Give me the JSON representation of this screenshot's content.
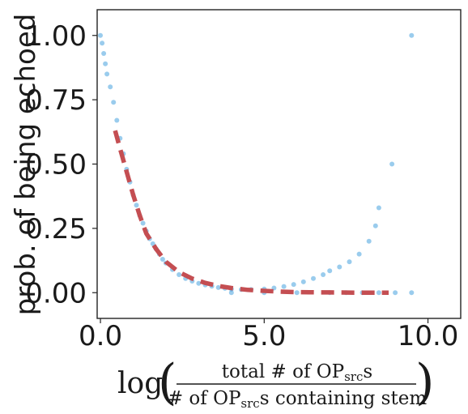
{
  "chart_data": {
    "type": "scatter",
    "title": "",
    "ylabel": "prob. of being echoed",
    "xlabel": {
      "prefix": "log",
      "numerator": [
        "total # of OP",
        "src",
        "s"
      ],
      "denominator": [
        "# of OP",
        "src",
        "s containing stem"
      ]
    },
    "xlim": [
      -0.1,
      11.0
    ],
    "ylim": [
      -0.1,
      1.1
    ],
    "xticks": [
      0.0,
      5.0,
      10.0
    ],
    "xtick_labels": [
      "0.0",
      "5.0",
      "10.0"
    ],
    "yticks": [
      0.0,
      0.25,
      0.5,
      0.75,
      1.0
    ],
    "ytick_labels": [
      "0.00",
      "0.25",
      "0.50",
      "0.75",
      "1.00"
    ],
    "grid": false,
    "series": [
      {
        "kind": "scatter",
        "color": "#1f8dd6",
        "points": [
          [
            0.0,
            1.0
          ],
          [
            0.05,
            0.97
          ],
          [
            0.1,
            0.93
          ],
          [
            0.15,
            0.89
          ],
          [
            0.2,
            0.85
          ],
          [
            0.3,
            0.8
          ],
          [
            0.4,
            0.74
          ],
          [
            0.5,
            0.67
          ],
          [
            0.6,
            0.6
          ],
          [
            0.7,
            0.54
          ],
          [
            0.8,
            0.48
          ],
          [
            0.9,
            0.43
          ],
          [
            1.0,
            0.38
          ],
          [
            1.1,
            0.34
          ],
          [
            1.2,
            0.3
          ],
          [
            1.3,
            0.27
          ],
          [
            1.4,
            0.24
          ],
          [
            1.5,
            0.21
          ],
          [
            1.6,
            0.19
          ],
          [
            1.7,
            0.17
          ],
          [
            1.8,
            0.15
          ],
          [
            1.9,
            0.13
          ],
          [
            2.0,
            0.115
          ],
          [
            2.2,
            0.09
          ],
          [
            2.4,
            0.07
          ],
          [
            2.6,
            0.055
          ],
          [
            2.8,
            0.045
          ],
          [
            3.0,
            0.036
          ],
          [
            3.2,
            0.03
          ],
          [
            3.4,
            0.025
          ],
          [
            3.6,
            0.02
          ],
          [
            3.8,
            0.017
          ],
          [
            4.0,
            0.014
          ],
          [
            4.3,
            0.012
          ],
          [
            4.6,
            0.012
          ],
          [
            5.0,
            0.014
          ],
          [
            5.3,
            0.018
          ],
          [
            5.6,
            0.024
          ],
          [
            5.9,
            0.032
          ],
          [
            6.2,
            0.042
          ],
          [
            6.5,
            0.055
          ],
          [
            6.8,
            0.07
          ],
          [
            7.0,
            0.085
          ],
          [
            7.3,
            0.1
          ],
          [
            7.6,
            0.12
          ],
          [
            7.9,
            0.15
          ],
          [
            8.2,
            0.2
          ],
          [
            8.4,
            0.26
          ],
          [
            8.5,
            0.33
          ],
          [
            8.9,
            0.5
          ],
          [
            9.5,
            1.0
          ],
          [
            4.0,
            0.0
          ],
          [
            5.0,
            0.0
          ],
          [
            6.0,
            0.0
          ],
          [
            7.0,
            0.0
          ],
          [
            7.5,
            0.0
          ],
          [
            8.0,
            0.0
          ],
          [
            8.5,
            0.0
          ],
          [
            9.0,
            0.0
          ],
          [
            9.5,
            0.0
          ]
        ]
      },
      {
        "kind": "line",
        "style": "dashed",
        "color": "#c44e52",
        "points": [
          [
            0.45,
            0.63
          ],
          [
            0.6,
            0.56
          ],
          [
            0.8,
            0.47
          ],
          [
            1.0,
            0.38
          ],
          [
            1.2,
            0.3
          ],
          [
            1.4,
            0.23
          ],
          [
            1.7,
            0.17
          ],
          [
            2.0,
            0.12
          ],
          [
            2.4,
            0.08
          ],
          [
            2.8,
            0.055
          ],
          [
            3.2,
            0.038
          ],
          [
            3.6,
            0.026
          ],
          [
            4.0,
            0.018
          ],
          [
            4.5,
            0.011
          ],
          [
            5.0,
            0.007
          ],
          [
            5.5,
            0.004
          ],
          [
            6.0,
            0.002
          ],
          [
            7.0,
            0.001
          ],
          [
            8.0,
            0.0
          ],
          [
            8.8,
            0.0
          ]
        ]
      }
    ]
  }
}
